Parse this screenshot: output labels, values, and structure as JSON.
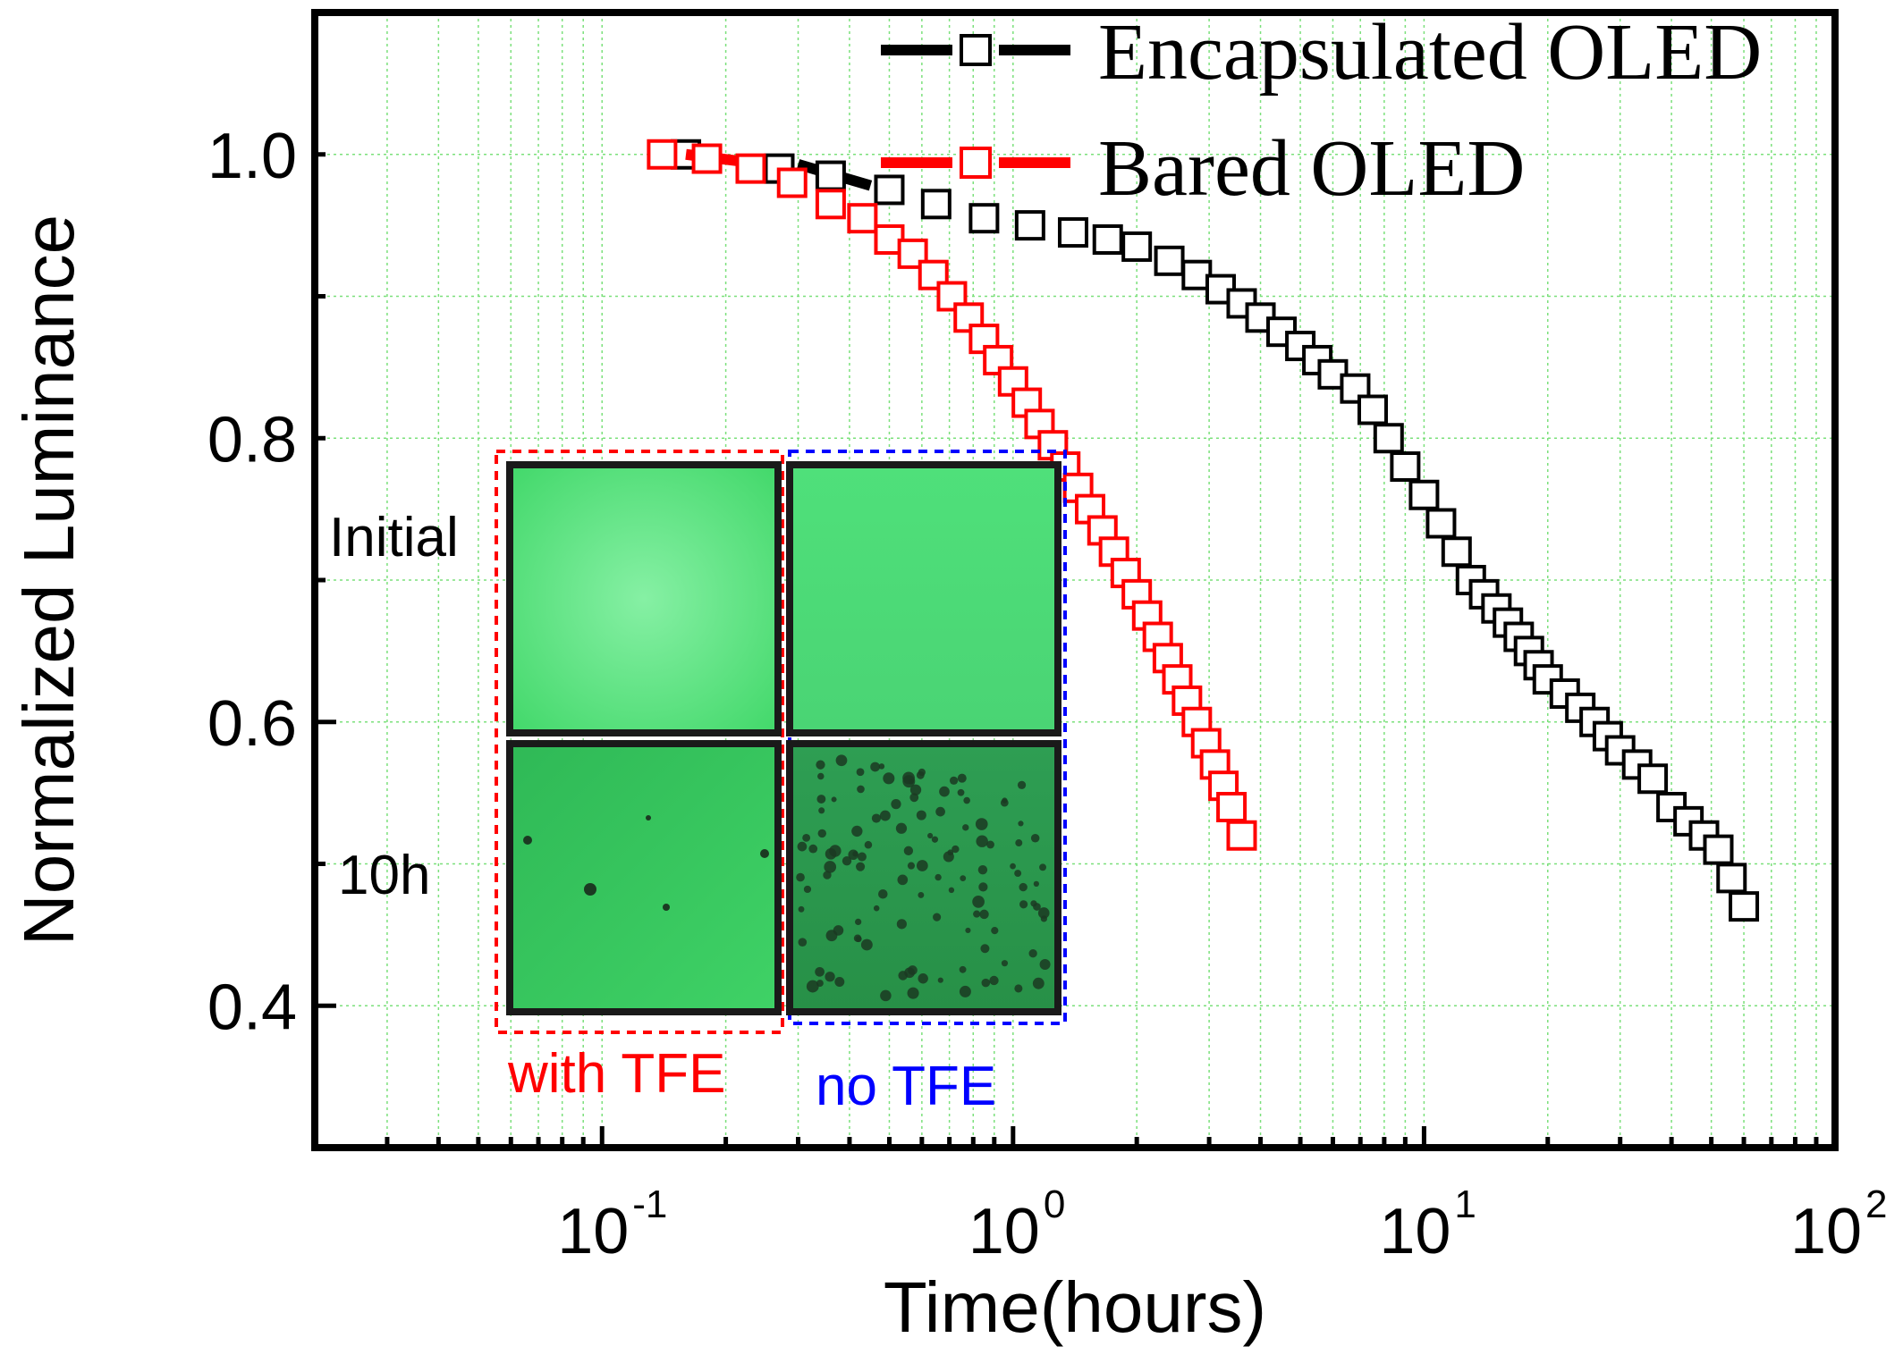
{
  "chart_data": {
    "type": "scatter",
    "x_scale": "log",
    "xlabel": "Time(hours)",
    "ylabel": "Normalized Luminance",
    "xlim": [
      0.02,
      100
    ],
    "ylim": [
      0.3,
      1.1
    ],
    "x_ticks": [
      {
        "base": "10",
        "exp": "-1",
        "value": 0.1
      },
      {
        "base": "10",
        "exp": "0",
        "value": 1
      },
      {
        "base": "10",
        "exp": "1",
        "value": 10
      },
      {
        "base": "10",
        "exp": "2",
        "value": 100
      }
    ],
    "y_ticks": [
      {
        "label": "0.4",
        "value": 0.4
      },
      {
        "label": "0.6",
        "value": 0.6
      },
      {
        "label": "0.8",
        "value": 0.8
      },
      {
        "label": "1.0",
        "value": 1.0
      }
    ],
    "grid": true,
    "legend_position": "top-right",
    "series": [
      {
        "name": "Encapsulated OLED",
        "color": "#000000",
        "marker": "open-square",
        "x": [
          0.16,
          0.27,
          0.36,
          0.5,
          0.65,
          0.85,
          1.1,
          1.4,
          1.7,
          2.0,
          2.4,
          2.8,
          3.2,
          3.6,
          4.0,
          4.5,
          5.0,
          5.5,
          6.0,
          6.8,
          7.5,
          8.2,
          9.0,
          10.0,
          11.0,
          12.0,
          13.0,
          14.0,
          15.0,
          16.0,
          17.0,
          18.0,
          19.0,
          20.0,
          22.0,
          24.0,
          26.0,
          28.0,
          30.0,
          33.0,
          36.0,
          40.0,
          44.0,
          48.0,
          52.0,
          56.0,
          60.0
        ],
        "y": [
          1.0,
          0.99,
          0.985,
          0.975,
          0.965,
          0.955,
          0.95,
          0.945,
          0.94,
          0.935,
          0.925,
          0.915,
          0.905,
          0.895,
          0.885,
          0.875,
          0.865,
          0.855,
          0.845,
          0.835,
          0.82,
          0.8,
          0.78,
          0.76,
          0.74,
          0.72,
          0.7,
          0.69,
          0.68,
          0.67,
          0.66,
          0.65,
          0.64,
          0.63,
          0.62,
          0.61,
          0.6,
          0.59,
          0.58,
          0.57,
          0.56,
          0.54,
          0.53,
          0.52,
          0.51,
          0.49,
          0.47
        ]
      },
      {
        "name": "Bared OLED",
        "color": "#ff0000",
        "marker": "open-square",
        "x": [
          0.14,
          0.18,
          0.23,
          0.29,
          0.36,
          0.43,
          0.5,
          0.57,
          0.64,
          0.71,
          0.78,
          0.85,
          0.92,
          1.0,
          1.08,
          1.16,
          1.25,
          1.34,
          1.44,
          1.54,
          1.65,
          1.76,
          1.88,
          2.0,
          2.12,
          2.25,
          2.38,
          2.51,
          2.65,
          2.8,
          2.95,
          3.1,
          3.25,
          3.4,
          3.6
        ],
        "y": [
          1.0,
          0.997,
          0.99,
          0.98,
          0.965,
          0.955,
          0.94,
          0.93,
          0.915,
          0.9,
          0.885,
          0.87,
          0.855,
          0.84,
          0.825,
          0.81,
          0.795,
          0.78,
          0.765,
          0.75,
          0.735,
          0.72,
          0.705,
          0.69,
          0.675,
          0.66,
          0.645,
          0.63,
          0.615,
          0.6,
          0.585,
          0.57,
          0.555,
          0.54,
          0.52
        ]
      }
    ]
  },
  "inset": {
    "row_labels": [
      "Initial",
      "10h"
    ],
    "condition_labels": [
      "with TFE",
      "no TFE"
    ],
    "border_colors": [
      "#ff0000",
      "#0000ff"
    ]
  }
}
